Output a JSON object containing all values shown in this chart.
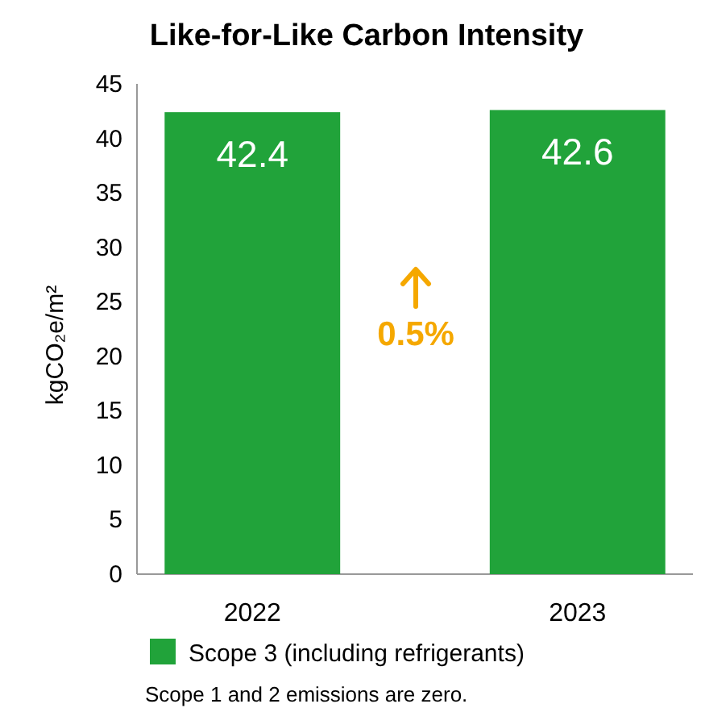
{
  "chart_data": {
    "type": "bar",
    "title": "Like-for-Like Carbon Intensity",
    "ylabel": "kgCO₂e/m²",
    "categories": [
      "2022",
      "2023"
    ],
    "series": [
      {
        "name": "Scope 3 (including refrigerants)",
        "color": "#21a33a",
        "values": [
          42.4,
          42.6
        ]
      }
    ],
    "ylim": [
      0,
      45
    ],
    "yticks": [
      0,
      5,
      10,
      15,
      20,
      25,
      30,
      35,
      40,
      45
    ],
    "grid": false,
    "data_labels": true,
    "legend": "bottom",
    "annotations": [
      "0.5%",
      "Scope 1 and 2 emissions are zero."
    ]
  }
}
